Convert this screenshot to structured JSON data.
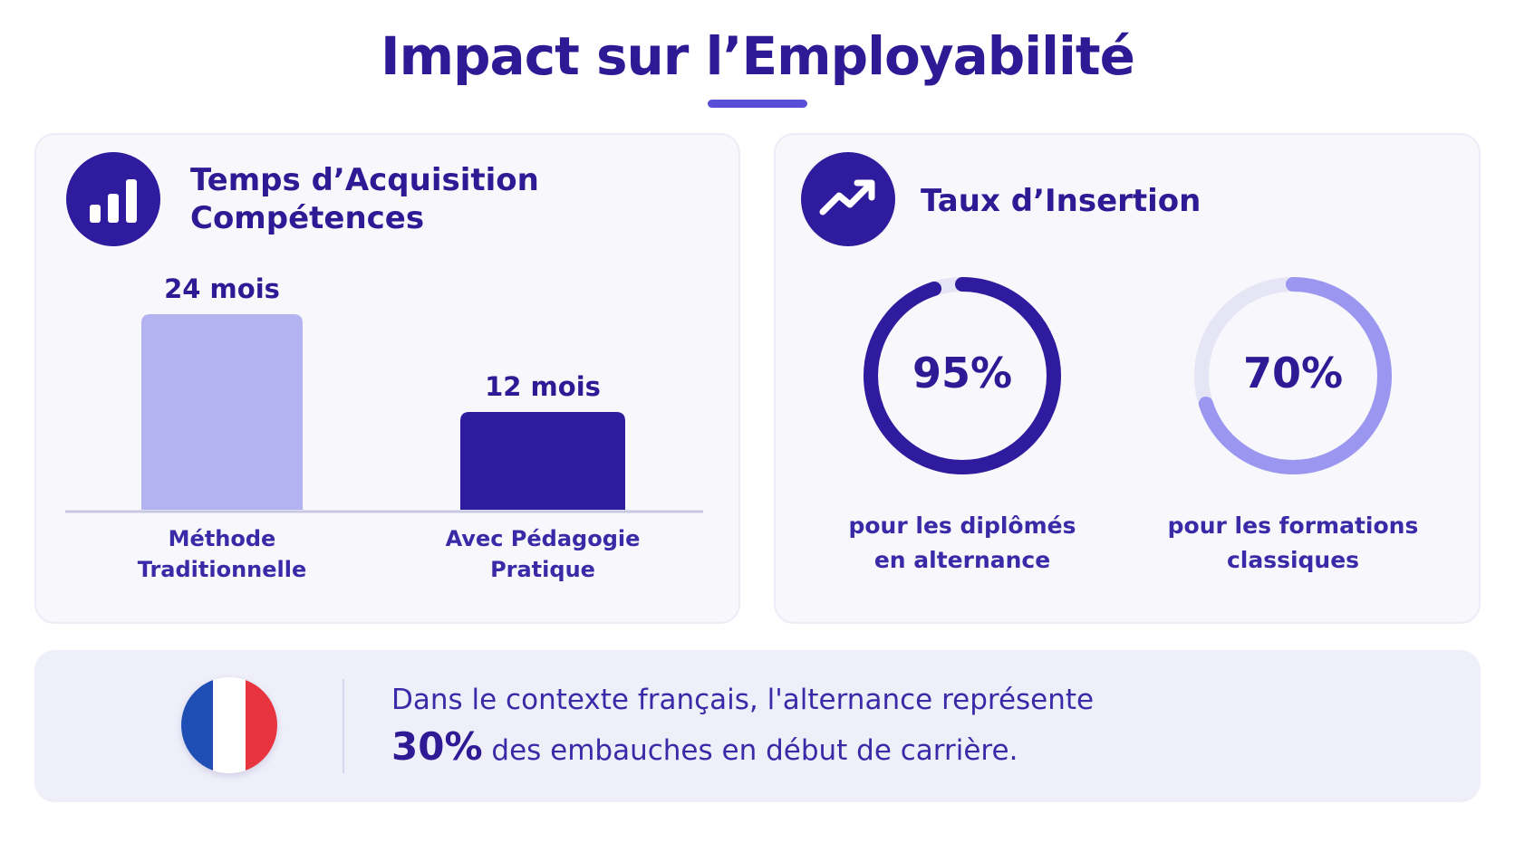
{
  "title": "Impact sur l’Employabilité",
  "colors": {
    "primary": "#2f1b9e",
    "light_bar": "#b3b3f2",
    "ring_light": "#9b97f0",
    "ring_track": "#e6e5f6"
  },
  "left_card": {
    "icon": "bar-chart-icon",
    "title_line1": "Temps d’Acquisition",
    "title_line2": "Compétences"
  },
  "right_card": {
    "icon": "trending-up-icon",
    "title": "Taux d’Insertion",
    "rings": [
      {
        "value": 95,
        "label": "95%",
        "caption_line1": "pour les diplômés",
        "caption_line2": "en alternance"
      },
      {
        "value": 70,
        "label": "70%",
        "caption_line1": "pour les formations",
        "caption_line2": "classiques"
      }
    ]
  },
  "chart_data": {
    "type": "bar",
    "categories": [
      "Méthode Traditionnelle",
      "Avec Pédagogie Pratique"
    ],
    "category_lines": [
      [
        "Méthode",
        "Traditionnelle"
      ],
      [
        "Avec Pédagogie",
        "Pratique"
      ]
    ],
    "values": [
      24,
      12
    ],
    "value_labels": [
      "24 mois",
      "12 mois"
    ],
    "unit": "mois",
    "title": "Temps d’Acquisition Compétences",
    "xlabel": "",
    "ylabel": "",
    "ylim": [
      0,
      24
    ],
    "grid": false
  },
  "banner": {
    "flag": "france-flag-icon",
    "line1": "Dans le contexte français, l'alternance représente",
    "highlight": "30%",
    "line2_rest": " des embauches en début de carrière."
  }
}
